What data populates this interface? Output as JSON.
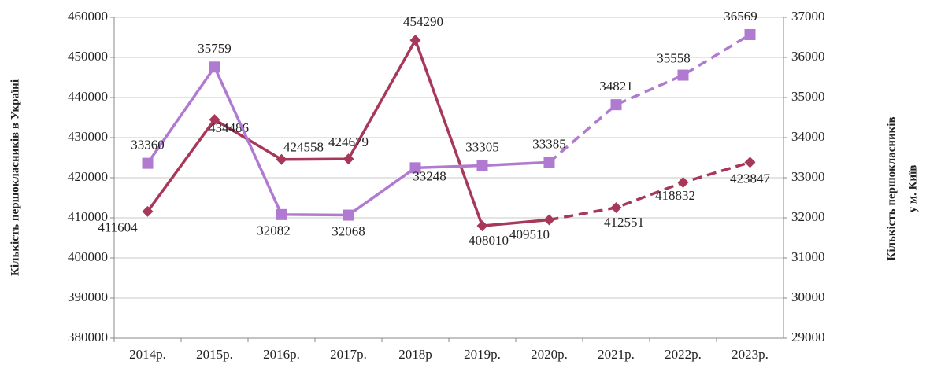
{
  "chart_data": {
    "type": "line",
    "categories": [
      "2014р.",
      "2015р.",
      "2016р.",
      "2017р.",
      "2018р",
      "2019р.",
      "2020р.",
      "2021р.",
      "2022р.",
      "2023р."
    ],
    "series": [
      {
        "name": "Україна",
        "color": "#a8385a",
        "marker": "diamond",
        "axis": "y",
        "values": [
          411604,
          434486,
          424558,
          424679,
          454290,
          408010,
          409510,
          412551,
          418832,
          423847
        ],
        "line_styles": [
          "solid",
          "solid",
          "solid",
          "solid",
          "solid",
          "solid",
          "dashed",
          "dashed",
          "dashed"
        ]
      },
      {
        "name": "м. Київ",
        "color": "#b07ad0",
        "marker": "square",
        "axis": "y2",
        "values": [
          33360,
          35759,
          32082,
          32068,
          33248,
          33305,
          33385,
          34821,
          35558,
          36569
        ],
        "line_styles": [
          "solid",
          "solid",
          "solid",
          "solid",
          "solid",
          "solid",
          "dashed",
          "dashed",
          "dashed"
        ]
      }
    ],
    "ylabel": "Кількість першокласників в Україні",
    "y2label": [
      "Кількість першокласників",
      "у м. Київ"
    ],
    "ylim": [
      380000,
      460000
    ],
    "yticks": [
      380000,
      390000,
      400000,
      410000,
      420000,
      430000,
      440000,
      450000,
      460000
    ],
    "y2lim": [
      29000,
      37000
    ],
    "y2ticks": [
      29000,
      30000,
      31000,
      32000,
      33000,
      34000,
      35000,
      36000,
      37000
    ],
    "grid": true
  }
}
